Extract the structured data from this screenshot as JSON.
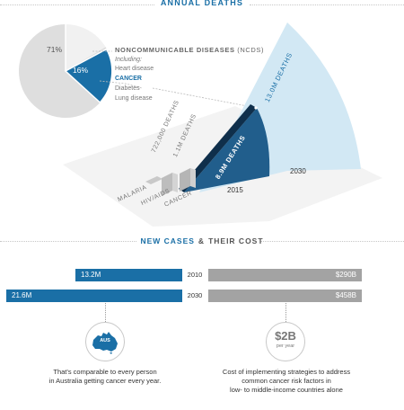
{
  "header": {
    "title": "ANNUAL DEATHS"
  },
  "pie": {
    "ncd_share": "71%",
    "cancer_share": "16%",
    "colors": {
      "rest": "#f1f1f1",
      "ncd": "#dedede",
      "cancer": "#1a6fa6"
    }
  },
  "ncd_legend": {
    "heading": "NONCOMMUNICABLE DISEASES",
    "heading_abbr": "(NCDs)",
    "including": "Including:",
    "items": [
      "Heart disease",
      "CANCER",
      "Diabetes",
      "Lung disease"
    ]
  },
  "deaths_bars": [
    {
      "disease": "MALARIA",
      "deaths": ""
    },
    {
      "disease": "HIV/AIDS",
      "deaths": "722,000 DEATHS"
    },
    {
      "disease": "CANCER",
      "deaths": "1.1M DEATHS"
    }
  ],
  "cancer_projection": {
    "y2015": {
      "year": "2015",
      "label": "8.9M DEATHS",
      "color": "#215e8c"
    },
    "y2030": {
      "year": "2030",
      "label": "13.0M DEATHS",
      "color": "#d2e8f4"
    }
  },
  "section2": {
    "title_a": "NEW CASES",
    "amp": "&",
    "title_b": "THEIR COST"
  },
  "rows": [
    {
      "year": "2010",
      "cases": "13.2M",
      "cost": "$290B"
    },
    {
      "year": "2030",
      "cases": "21.6M",
      "cost": "$458B"
    }
  ],
  "left_callout": {
    "badge": "AUS",
    "caption_1": "That's comparable to every person",
    "caption_2": "in Australia getting cancer every year."
  },
  "right_callout": {
    "amount": "$2B",
    "period": "per year",
    "caption_1": "Cost of implementing strategies to address",
    "caption_2": "common cancer risk factors in",
    "caption_3": "low- to middle-income countries alone"
  }
}
